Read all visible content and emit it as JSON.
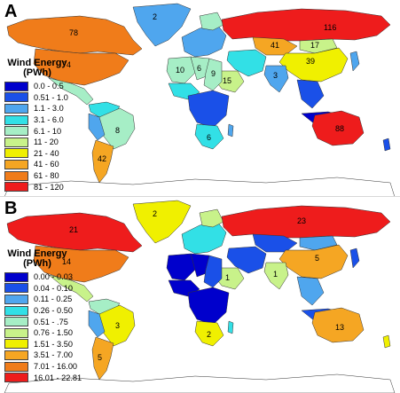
{
  "panels": [
    {
      "letter": "A",
      "legend_title_line1": "Wind Energy",
      "legend_title_line2": "(PWh)",
      "legend": [
        {
          "label": "0.0 - 0.5",
          "color": "#0000cc"
        },
        {
          "label": "0.51 - 1.0",
          "color": "#1a50e8"
        },
        {
          "label": "1.1 - 3.0",
          "color": "#4fa6ee"
        },
        {
          "label": "3.1 - 6.0",
          "color": "#32e0e6"
        },
        {
          "label": "6.1 - 10",
          "color": "#a6eec6"
        },
        {
          "label": "11 - 20",
          "color": "#c8f28a"
        },
        {
          "label": "21 - 40",
          "color": "#f0f000"
        },
        {
          "label": "41 - 60",
          "color": "#f5a623"
        },
        {
          "label": "61 - 80",
          "color": "#f07c1a"
        },
        {
          "label": "81 - 120",
          "color": "#ee1c1c"
        }
      ],
      "labels": [
        {
          "text": "2",
          "region": "greenland"
        },
        {
          "text": "78",
          "region": "canada"
        },
        {
          "text": "74",
          "region": "usa"
        },
        {
          "text": "116",
          "region": "russia"
        },
        {
          "text": "41",
          "region": "kazakhstan"
        },
        {
          "text": "17",
          "region": "mongolia"
        },
        {
          "text": "39",
          "region": "china"
        },
        {
          "text": "10",
          "region": "north-africa-west"
        },
        {
          "text": "6",
          "region": "north-africa-central"
        },
        {
          "text": "9",
          "region": "sudan"
        },
        {
          "text": "15",
          "region": "saudi"
        },
        {
          "text": "3",
          "region": "india"
        },
        {
          "text": "8",
          "region": "brazil"
        },
        {
          "text": "42",
          "region": "argentina"
        },
        {
          "text": "6",
          "region": "south-africa"
        },
        {
          "text": "88",
          "region": "australia"
        }
      ]
    },
    {
      "letter": "B",
      "legend_title_line1": "Wind Energy",
      "legend_title_line2": "(PWh)",
      "legend": [
        {
          "label": "0.00 - 0.03",
          "color": "#0000cc"
        },
        {
          "label": "0.04 - 0.10",
          "color": "#1a50e8"
        },
        {
          "label": "0.11 - 0.25",
          "color": "#4fa6ee"
        },
        {
          "label": "0.26 - 0.50",
          "color": "#32e0e6"
        },
        {
          "label": "0.51 - .75",
          "color": "#a6eec6"
        },
        {
          "label": "0.76 - 1.50",
          "color": "#c8f28a"
        },
        {
          "label": "1.51 - 3.50",
          "color": "#f0f000"
        },
        {
          "label": "3.51 - 7.00",
          "color": "#f5a623"
        },
        {
          "label": "7.01 - 16.00",
          "color": "#f07c1a"
        },
        {
          "label": "16.01 - 22.81",
          "color": "#ee1c1c"
        }
      ],
      "labels": [
        {
          "text": "2",
          "region": "greenland"
        },
        {
          "text": "21",
          "region": "canada"
        },
        {
          "text": "14",
          "region": "usa"
        },
        {
          "text": "23",
          "region": "russia"
        },
        {
          "text": "5",
          "region": "china"
        },
        {
          "text": "1",
          "region": "india"
        },
        {
          "text": "1",
          "region": "saudi"
        },
        {
          "text": "3",
          "region": "brazil"
        },
        {
          "text": "5",
          "region": "argentina"
        },
        {
          "text": "2",
          "region": "south-africa"
        },
        {
          "text": "13",
          "region": "australia"
        }
      ]
    }
  ]
}
